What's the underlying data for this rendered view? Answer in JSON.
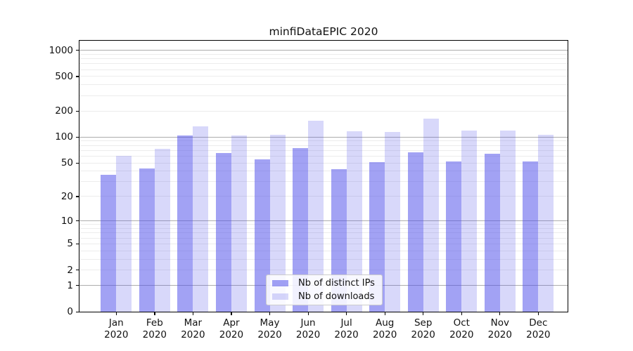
{
  "chart_data": {
    "type": "bar",
    "title": "minfiDataEPIC 2020",
    "categories": [
      "Jan 2020",
      "Feb 2020",
      "Mar 2020",
      "Apr 2020",
      "May 2020",
      "Jun 2020",
      "Jul 2020",
      "Aug 2020",
      "Sep 2020",
      "Oct 2020",
      "Nov 2020",
      "Dec 2020"
    ],
    "month_labels": [
      "Jan",
      "Feb",
      "Mar",
      "Apr",
      "May",
      "Jun",
      "Jul",
      "Aug",
      "Sep",
      "Oct",
      "Nov",
      "Dec"
    ],
    "year_label": "2020",
    "series": [
      {
        "name": "Nb of distinct IPs",
        "color": "rgba(77,77,234,0.52)",
        "values": [
          36,
          43,
          105,
          65,
          55,
          74,
          42,
          51,
          66,
          52,
          64,
          52
        ]
      },
      {
        "name": "Nb of downloads",
        "color": "rgba(77,77,234,0.22)",
        "values": [
          61,
          73,
          133,
          105,
          107,
          155,
          117,
          115,
          162,
          120,
          118,
          107
        ]
      }
    ],
    "y_scale": "log1p",
    "y_ticks": [
      0,
      1,
      2,
      5,
      10,
      20,
      50,
      100,
      200,
      500,
      1000
    ],
    "ylim": [
      0,
      1276
    ],
    "xlabel": "",
    "ylabel": "",
    "grid": true,
    "legend_position": "lower-center",
    "colors": {
      "major_grid": "#adadad",
      "minor_grid": "#ececec",
      "axis": "#000000",
      "bar_dark": "rgba(77,77,234,0.52)",
      "bar_light": "rgba(77,77,234,0.22)"
    }
  }
}
